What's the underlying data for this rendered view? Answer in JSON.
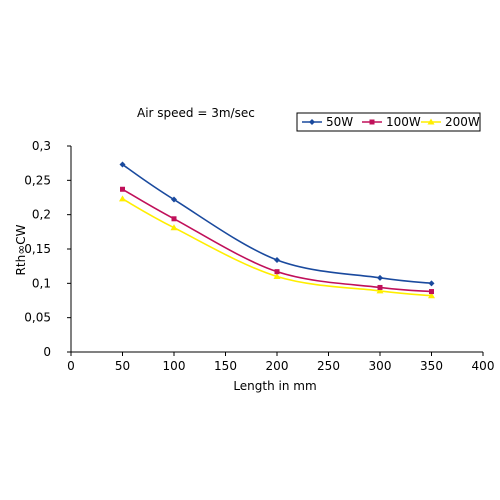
{
  "chart_data": {
    "type": "line",
    "title": "Air speed = 3m/sec",
    "xlabel": "Length in mm",
    "ylabel": "Rth∞CW",
    "xlim": [
      0,
      400
    ],
    "ylim": [
      0,
      0.3
    ],
    "x_ticks": [
      0,
      50,
      100,
      150,
      200,
      250,
      300,
      350,
      400
    ],
    "x_tick_labels": [
      "0",
      "50",
      "100",
      "150",
      "200",
      "250",
      "300",
      "350",
      "400"
    ],
    "y_ticks": [
      0,
      0.05,
      0.1,
      0.15,
      0.2,
      0.25,
      0.3
    ],
    "y_tick_labels": [
      "0",
      "0,05",
      "0,1",
      "0,15",
      "0,2",
      "0,25",
      "0,3"
    ],
    "grid": false,
    "legend_position": "top-right",
    "x": [
      50,
      100,
      200,
      300,
      350
    ],
    "series": [
      {
        "name": "50W",
        "color": "#1a4a9e",
        "marker": "diamond",
        "values": [
          0.273,
          0.222,
          0.134,
          0.108,
          0.1
        ]
      },
      {
        "name": "100W",
        "color": "#c0105a",
        "marker": "square",
        "values": [
          0.237,
          0.194,
          0.117,
          0.094,
          0.088
        ]
      },
      {
        "name": "200W",
        "color": "#ffee00",
        "marker": "triangle",
        "values": [
          0.223,
          0.181,
          0.11,
          0.089,
          0.082
        ]
      }
    ]
  }
}
